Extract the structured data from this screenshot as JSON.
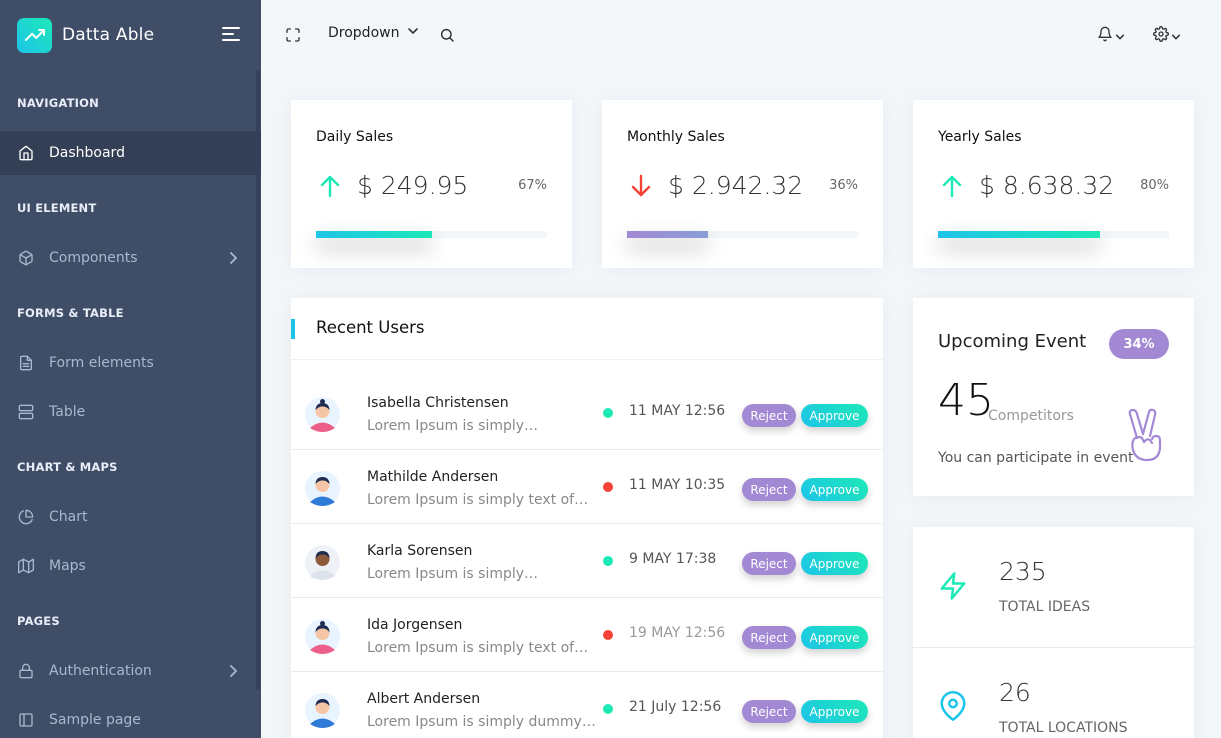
{
  "brand": {
    "name": "Datta Able"
  },
  "sidebar": {
    "captions": [
      "NAVIGATION",
      "UI ELEMENT",
      "FORMS & TABLE",
      "CHART & MAPS",
      "PAGES"
    ],
    "items": [
      {
        "label": "Dashboard",
        "icon": "home-icon",
        "active": true
      },
      {
        "label": "Components",
        "icon": "box-icon",
        "has_children": true
      },
      {
        "label": "Form elements",
        "icon": "file-text-icon"
      },
      {
        "label": "Table",
        "icon": "server-icon"
      },
      {
        "label": "Chart",
        "icon": "pie-chart-icon"
      },
      {
        "label": "Maps",
        "icon": "map-icon"
      },
      {
        "label": "Authentication",
        "icon": "lock-icon",
        "has_children": true
      },
      {
        "label": "Sample page",
        "icon": "sidebar-icon"
      }
    ]
  },
  "header": {
    "dropdown_label": "Dropdown"
  },
  "sales": [
    {
      "title": "Daily Sales",
      "value": "$ 249.95",
      "percent": "67%",
      "progress": 50,
      "trend": "up"
    },
    {
      "title": "Monthly Sales",
      "value": "$ 2.942.32",
      "percent": "36%",
      "progress": 35,
      "trend": "down"
    },
    {
      "title": "Yearly Sales",
      "value": "$ 8.638.32",
      "percent": "80%",
      "progress": 70,
      "trend": "up"
    }
  ],
  "recent_users": {
    "title": "Recent Users",
    "reject_label": "Reject",
    "approve_label": "Approve",
    "rows": [
      {
        "name": "Isabella Christensen",
        "desc": "Lorem Ipsum is simply…",
        "time": "11 MAY 12:56",
        "status": "online"
      },
      {
        "name": "Mathilde Andersen",
        "desc": "Lorem Ipsum is simply text of…",
        "time": "11 MAY 10:35",
        "status": "offline"
      },
      {
        "name": "Karla Sorensen",
        "desc": "Lorem Ipsum is simply…",
        "time": "9 MAY 17:38",
        "status": "online"
      },
      {
        "name": "Ida Jorgensen",
        "desc": "Lorem Ipsum is simply text of…",
        "time": "19 MAY 12:56",
        "status": "offline"
      },
      {
        "name": "Albert Andersen",
        "desc": "Lorem Ipsum is simply dummy…",
        "time": "21 July 12:56",
        "status": "online"
      }
    ]
  },
  "event": {
    "title": "Upcoming Event",
    "badge": "34%",
    "count": "45",
    "count_label": "Competitors",
    "text": "You can participate in event"
  },
  "stats": [
    {
      "value": "235",
      "label": "TOTAL IDEAS",
      "icon": "zap-icon"
    },
    {
      "value": "26",
      "label": "TOTAL LOCATIONS",
      "icon": "map-pin-icon"
    }
  ],
  "colors": {
    "sidebar_bg": "#3f4d67",
    "accent_green": "#1de9b6",
    "accent_blue": "#1dc4e9",
    "accent_purple": "#a389d4",
    "status_online": "#1de9b6",
    "status_offline": "#f44236",
    "trend_down": "#f44236"
  }
}
